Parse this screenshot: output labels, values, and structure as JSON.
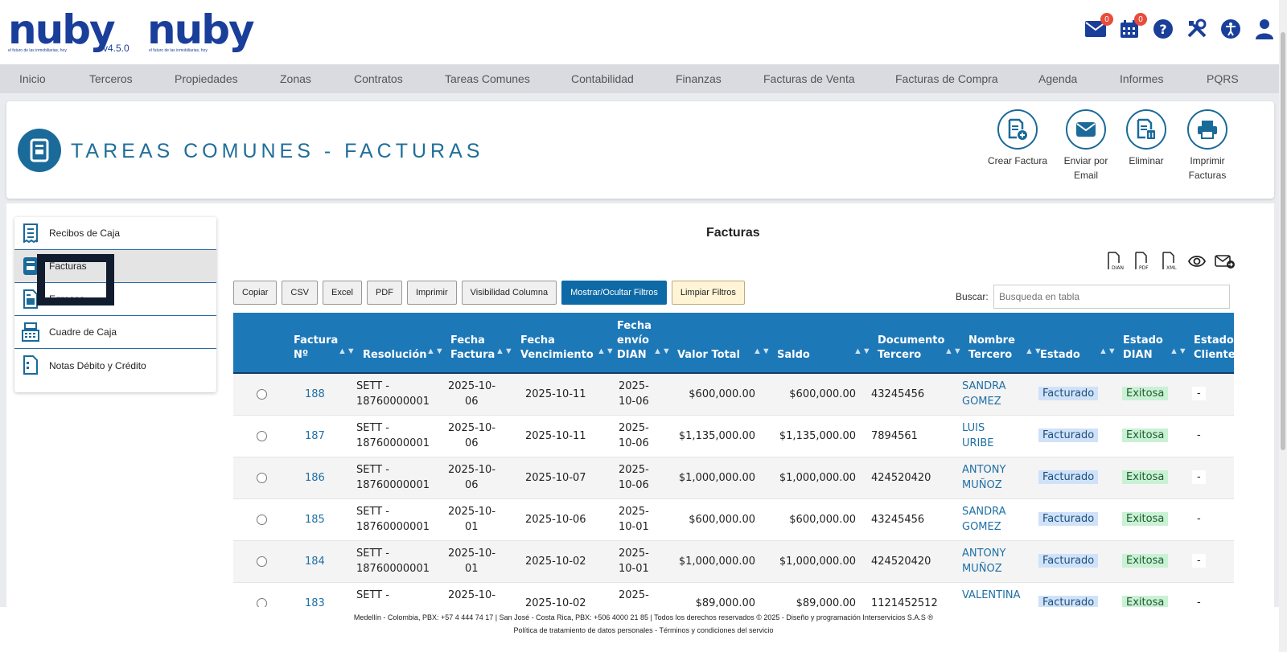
{
  "brand": {
    "logo_text": "nuby",
    "tagline": "el futuro de las inmobiliarias, hoy",
    "version": "v4.5.0"
  },
  "top_icons": {
    "mail_badge": "0",
    "calendar_badge": "0"
  },
  "nav": [
    "Inicio",
    "Terceros",
    "Propiedades",
    "Zonas",
    "Contratos",
    "Tareas Comunes",
    "Contabilidad",
    "Finanzas",
    "Facturas de Venta",
    "Facturas de Compra",
    "Agenda",
    "Informes",
    "PQRS"
  ],
  "page": {
    "title": "TAREAS COMUNES - FACTURAS"
  },
  "actions": [
    {
      "label": "Crear Factura"
    },
    {
      "label": "Enviar por Email"
    },
    {
      "label": "Eliminar"
    },
    {
      "label": "Imprimir Facturas"
    }
  ],
  "side_menu": [
    {
      "label": "Recibos de Caja"
    },
    {
      "label": "Facturas"
    },
    {
      "label": "Egresos"
    },
    {
      "label": "Cuadre de Caja"
    },
    {
      "label": "Notas Débito y Crédito"
    }
  ],
  "table_title": "Facturas",
  "buttons": [
    "Copiar",
    "CSV",
    "Excel",
    "PDF",
    "Imprimir",
    "Visibilidad Columna",
    "Mostrar/Ocultar Filtros",
    "Limpiar Filtros"
  ],
  "search": {
    "label": "Buscar:",
    "placeholder": "Busqueda en tabla"
  },
  "columns": [
    "Factura Nº",
    "Resolución",
    "Fecha Factura",
    "Fecha Vencimiento",
    "Fecha envío DIAN",
    "Valor Total",
    "Saldo",
    "Documento Tercero",
    "Nombre Tercero",
    "Estado",
    "Estado DIAN",
    "Estado Cliente"
  ],
  "rows": [
    {
      "num": "188",
      "res1": "SETT -",
      "res2": "18760000001",
      "ff1": "2025-10-",
      "ff2": "06",
      "fv": "2025-10-11",
      "fd1": "2025-",
      "fd2": "10-06",
      "total": "$600,000.00",
      "saldo": "$600,000.00",
      "doc": "43245456",
      "n1": "SANDRA",
      "n2": "GOMEZ",
      "estado": "Facturado",
      "dian": "Exitosa",
      "cliente": "-"
    },
    {
      "num": "187",
      "res1": "SETT -",
      "res2": "18760000001",
      "ff1": "2025-10-",
      "ff2": "06",
      "fv": "2025-10-11",
      "fd1": "2025-",
      "fd2": "10-06",
      "total": "$1,135,000.00",
      "saldo": "$1,135,000.00",
      "doc": "7894561",
      "n1": "LUIS",
      "n2": "URIBE",
      "estado": "Facturado",
      "dian": "Exitosa",
      "cliente": "-"
    },
    {
      "num": "186",
      "res1": "SETT -",
      "res2": "18760000001",
      "ff1": "2025-10-",
      "ff2": "06",
      "fv": "2025-10-07",
      "fd1": "2025-",
      "fd2": "10-06",
      "total": "$1,000,000.00",
      "saldo": "$1,000,000.00",
      "doc": "424520420",
      "n1": "ANTONY",
      "n2": "MUÑOZ",
      "estado": "Facturado",
      "dian": "Exitosa",
      "cliente": "-"
    },
    {
      "num": "185",
      "res1": "SETT -",
      "res2": "18760000001",
      "ff1": "2025-10-",
      "ff2": "01",
      "fv": "2025-10-06",
      "fd1": "2025-",
      "fd2": "10-01",
      "total": "$600,000.00",
      "saldo": "$600,000.00",
      "doc": "43245456",
      "n1": "SANDRA",
      "n2": "GOMEZ",
      "estado": "Facturado",
      "dian": "Exitosa",
      "cliente": "-"
    },
    {
      "num": "184",
      "res1": "SETT -",
      "res2": "18760000001",
      "ff1": "2025-10-",
      "ff2": "01",
      "fv": "2025-10-02",
      "fd1": "2025-",
      "fd2": "10-01",
      "total": "$1,000,000.00",
      "saldo": "$1,000,000.00",
      "doc": "424520420",
      "n1": "ANTONY",
      "n2": "MUÑOZ",
      "estado": "Facturado",
      "dian": "Exitosa",
      "cliente": "-"
    },
    {
      "num": "183",
      "res1": "SETT -",
      "res2": "",
      "ff1": "2025-10-",
      "ff2": "",
      "fv": "2025-10-02",
      "fd1": "2025-",
      "fd2": "",
      "total": "$89,000.00",
      "saldo": "$89,000.00",
      "doc": "1121452512",
      "n1": "VALENTINA",
      "n2": "",
      "estado": "Facturado",
      "dian": "Exitosa",
      "cliente": "-"
    }
  ],
  "footer": {
    "line1": "Medellín - Colombia, PBX: +57 4 444 74 17 | San José - Costa Rica, PBX: +506 4000 21 85 | Todos los derechos reservados © 2025 - Diseño y programación Interservicios S.A.S ®",
    "line2": "Política de tratamiento de datos personales - Términos y condiciones del servicio"
  }
}
